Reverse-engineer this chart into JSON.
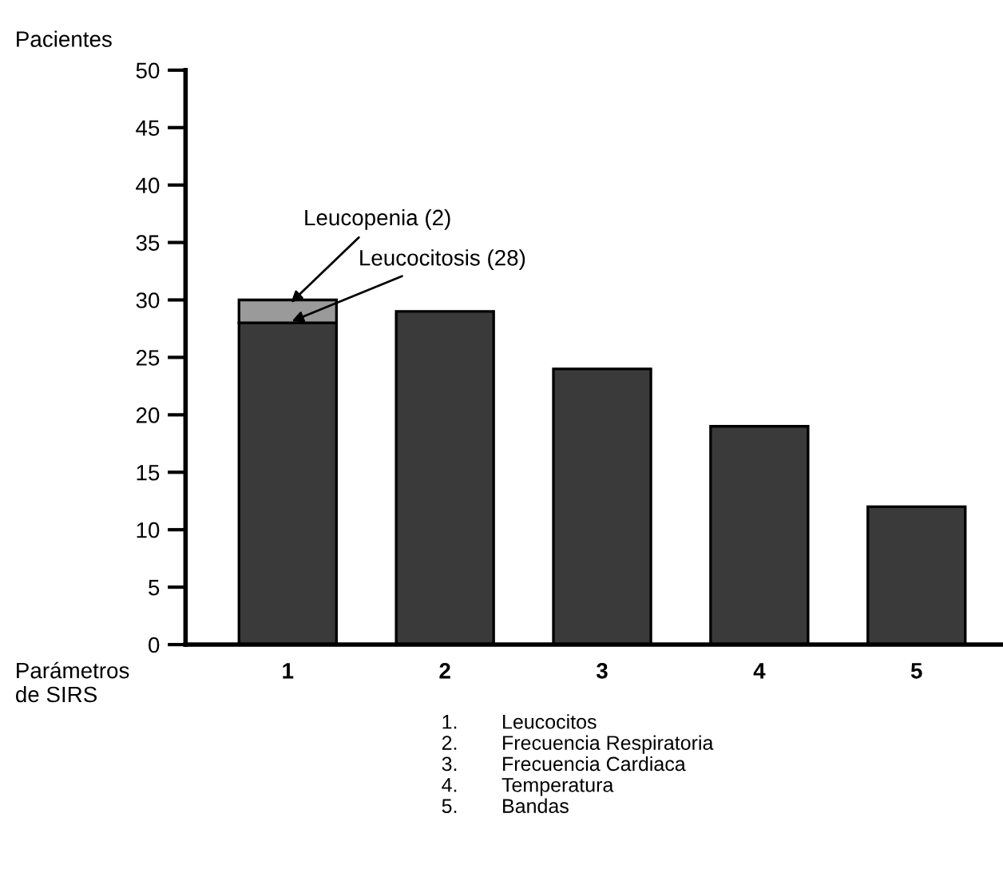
{
  "chart_data": {
    "type": "bar",
    "stacked": true,
    "ylabel": "Pacientes",
    "xlabel": "Parámetros\nde SIRS",
    "categories": [
      "1",
      "2",
      "3",
      "4",
      "5"
    ],
    "series": [
      {
        "color": "#3a3a3a",
        "values": [
          28,
          29,
          24,
          19,
          12
        ]
      },
      {
        "color": "#9a9a9a",
        "values": [
          2,
          null,
          null,
          null,
          null
        ]
      }
    ],
    "ylim": [
      0,
      50
    ],
    "yticks": [
      0,
      5,
      10,
      15,
      20,
      25,
      30,
      35,
      40,
      45,
      50
    ],
    "grid": false,
    "legend": false,
    "annotations": [
      {
        "text": "Leucopenia (2)",
        "x": "1",
        "y": 29.5
      },
      {
        "text": "Leucocitosis (28)",
        "x": "1",
        "y": 28
      },
      "1.\tLeucocitos",
      "2.\tFrecuencia Respiratoria",
      "3.\tFrecuencia Cardiaca",
      "4.\tTemperatura",
      "5.\tBandas"
    ]
  }
}
